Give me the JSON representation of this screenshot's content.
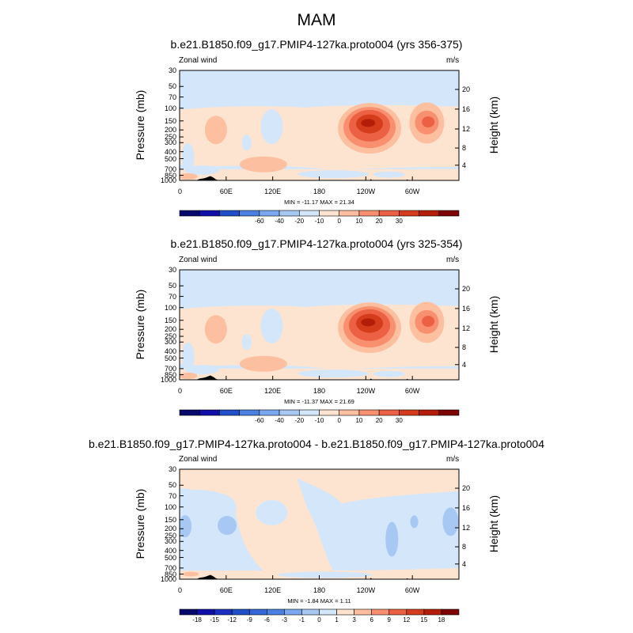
{
  "page": {
    "title": "MAM"
  },
  "chart_data": [
    {
      "type": "contour",
      "title": "b.e21.B1850.f09_g17.PMIP4-127ka.proto004 (yrs 356-375)",
      "left_label": "Zonal wind",
      "right_label": "m/s",
      "ylabel": "Pressure (mb)",
      "y2label": "Height (km)",
      "pressure_ticks": [
        "30",
        "50",
        "70",
        "100",
        "150",
        "200",
        "250",
        "300",
        "400",
        "500",
        "700",
        "850",
        "1000"
      ],
      "height_ticks": [
        "20",
        "16",
        "12",
        "8",
        "4"
      ],
      "x_ticks": [
        "0",
        "60E",
        "120E",
        "180",
        "120W",
        "60W"
      ],
      "stats": "MIN = -11.17  MAX =  21.34",
      "colorbar_labels": [
        "-60",
        "-40",
        "-20",
        "-10",
        "0",
        "10",
        "20",
        "30"
      ],
      "colorbar_colors": [
        "#08086b",
        "#1010a8",
        "#2050c8",
        "#4a80e0",
        "#7aa8f0",
        "#a8c8f4",
        "#d4e6fa",
        "#fde4d0",
        "#fcc0a0",
        "#f89070",
        "#ec6044",
        "#d43c1c",
        "#b41e08",
        "#7c0404"
      ],
      "min": -11.17,
      "max": 21.34
    },
    {
      "type": "contour",
      "title": "b.e21.B1850.f09_g17.PMIP4-127ka.proto004 (yrs 325-354)",
      "left_label": "Zonal wind",
      "right_label": "m/s",
      "ylabel": "Pressure (mb)",
      "y2label": "Height (km)",
      "pressure_ticks": [
        "30",
        "50",
        "70",
        "100",
        "150",
        "200",
        "250",
        "300",
        "400",
        "500",
        "700",
        "850",
        "1000"
      ],
      "height_ticks": [
        "20",
        "16",
        "12",
        "8",
        "4"
      ],
      "x_ticks": [
        "0",
        "60E",
        "120E",
        "180",
        "120W",
        "60W"
      ],
      "stats": "MIN = -11.37  MAX =  21.69",
      "colorbar_labels": [
        "-60",
        "-40",
        "-20",
        "-10",
        "0",
        "10",
        "20",
        "30"
      ],
      "colorbar_colors": [
        "#08086b",
        "#1010a8",
        "#2050c8",
        "#4a80e0",
        "#7aa8f0",
        "#a8c8f4",
        "#d4e6fa",
        "#fde4d0",
        "#fcc0a0",
        "#f89070",
        "#ec6044",
        "#d43c1c",
        "#b41e08",
        "#7c0404"
      ],
      "min": -11.37,
      "max": 21.69
    },
    {
      "type": "contour",
      "title": "b.e21.B1850.f09_g17.PMIP4-127ka.proto004 - b.e21.B1850.f09_g17.PMIP4-127ka.proto004",
      "left_label": "Zonal wind",
      "right_label": "m/s",
      "ylabel": "Pressure (mb)",
      "y2label": "Height (km)",
      "pressure_ticks": [
        "30",
        "50",
        "70",
        "100",
        "150",
        "200",
        "250",
        "300",
        "400",
        "500",
        "700",
        "850",
        "1000"
      ],
      "height_ticks": [
        "20",
        "16",
        "12",
        "8",
        "4"
      ],
      "x_ticks": [
        "0",
        "60E",
        "120E",
        "180",
        "120W",
        "60W"
      ],
      "stats": "MIN = -1.84  MAX =  1.11",
      "colorbar_labels": [
        "-18",
        "-15",
        "-12",
        "-9",
        "-6",
        "-3",
        "-1",
        "0",
        "1",
        "3",
        "6",
        "9",
        "12",
        "15",
        "18"
      ],
      "colorbar_colors": [
        "#08086b",
        "#1010a8",
        "#1a30c0",
        "#2050c8",
        "#3468d8",
        "#4a80e0",
        "#7aa8f0",
        "#a8c8f4",
        "#d4e6fa",
        "#fde4d0",
        "#fcc0a0",
        "#f89070",
        "#ec6044",
        "#d43c1c",
        "#b41e08",
        "#7c0404"
      ],
      "min": -1.84,
      "max": 1.11
    }
  ]
}
